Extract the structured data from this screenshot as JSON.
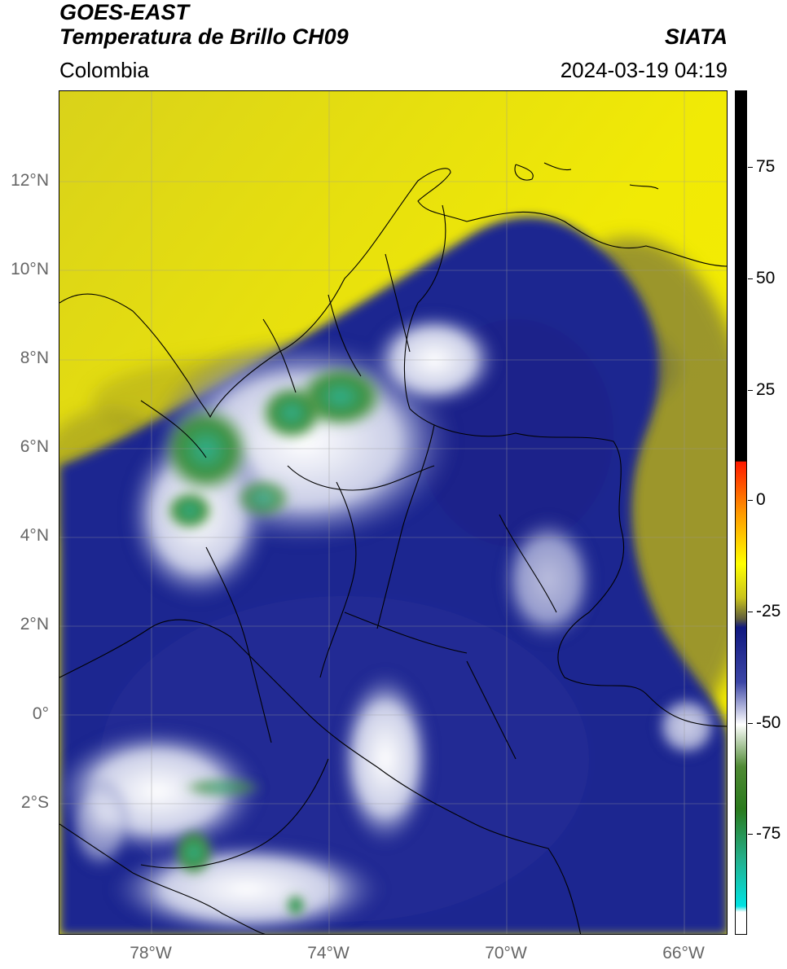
{
  "header": {
    "title_line1": "GOES-EAST",
    "title_line2": "Temperatura de Brillo CH09",
    "brand": "SIATA",
    "region": "Colombia",
    "timestamp": "2024-03-19 04:19"
  },
  "map": {
    "lat_labels": [
      "12°N",
      "10°N",
      "8°N",
      "6°N",
      "4°N",
      "2°N",
      "0°",
      "2°S"
    ],
    "lon_labels": [
      "78°W",
      "74°W",
      "70°W",
      "66°W"
    ],
    "colors": {
      "warm_clear": "#f2ec00",
      "dry_olive": "#8e8a2c",
      "mid_cloud": "#1f2a8e",
      "high_cloud": "#e6e8f2",
      "convective": "#3f8f36",
      "deep_convective": "#22a98a"
    }
  },
  "colorbar": {
    "ticks": [
      "75",
      "50",
      "25",
      "0",
      "-25",
      "-50",
      "-75"
    ],
    "colors": [
      "#000000",
      "#ff0000",
      "#ff9900",
      "#ffff00",
      "#8b8a33",
      "#1a1f8c",
      "#ffffff",
      "#2f7a20",
      "#2bb38a",
      "#00e0e0"
    ]
  }
}
